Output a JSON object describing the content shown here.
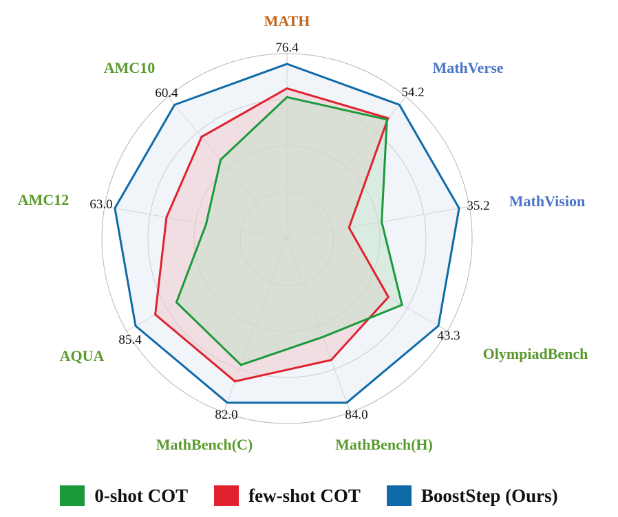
{
  "chart_data": {
    "type": "radar",
    "axes": [
      {
        "label": "MATH",
        "max_label": "76.4",
        "max": 76.4,
        "color": "#c0651a"
      },
      {
        "label": "MathVerse",
        "max_label": "54.2",
        "max": 54.2,
        "color": "#4a74c9"
      },
      {
        "label": "MathVision",
        "max_label": "35.2",
        "max": 35.2,
        "color": "#4a74c9"
      },
      {
        "label": "OlympiadBench",
        "max_label": "43.3",
        "max": 43.3,
        "color": "#5a9a2e"
      },
      {
        "label": "MathBench(H)",
        "max_label": "84.0",
        "max": 84.0,
        "color": "#5a9a2e"
      },
      {
        "label": "MathBench(C)",
        "max_label": "82.0",
        "max": 82.0,
        "color": "#5a9a2e"
      },
      {
        "label": "AQUA",
        "max_label": "85.4",
        "max": 85.4,
        "color": "#5a9a2e"
      },
      {
        "label": "AMC12",
        "max_label": "63.0",
        "max": 63.0,
        "color": "#5a9a2e"
      },
      {
        "label": "AMC10",
        "max_label": "60.4",
        "max": 60.4,
        "color": "#5a9a2e"
      }
    ],
    "series": [
      {
        "name": "0-shot COT",
        "color": "#1a9a3a",
        "fill": "#bfe0c6",
        "ratios": [
          0.81,
          0.89,
          0.55,
          0.76,
          0.6,
          0.77,
          0.73,
          0.47,
          0.59
        ]
      },
      {
        "name": "few-shot COT",
        "color": "#e0212e",
        "fill": "#f2c4c6",
        "ratios": [
          0.86,
          0.9,
          0.36,
          0.67,
          0.74,
          0.87,
          0.87,
          0.7,
          0.76
        ]
      },
      {
        "name": "BoostStep (Ours)",
        "color": "#0f6aa8",
        "fill": "#dfe9f5",
        "ratios": [
          1,
          1,
          1,
          1,
          1,
          1,
          1,
          1,
          1
        ]
      }
    ],
    "grid_levels": 4
  },
  "legend": [
    {
      "label": "0-shot COT",
      "color": "#1a9a3a"
    },
    {
      "label": "few-shot COT",
      "color": "#e0212e"
    },
    {
      "label": "BoostStep (Ours)",
      "color": "#0f6aa8"
    }
  ]
}
